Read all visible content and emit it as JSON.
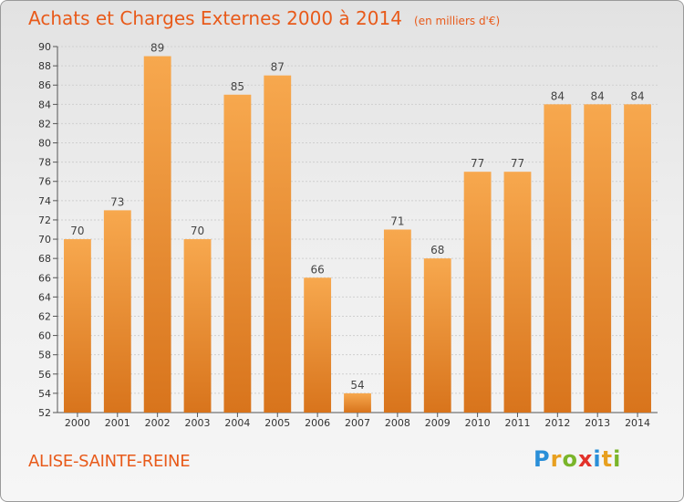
{
  "header": {
    "title": "Achats et Charges Externes 2000 à 2014",
    "unit": "(en milliers d'€)"
  },
  "footer": {
    "town": "ALISE-SAINTE-REINE",
    "logo_letters": [
      "P",
      "r",
      "o",
      "x",
      "i",
      "t",
      "i"
    ],
    "logo_colors": [
      "#2a8fd8",
      "#e8a020",
      "#7ab52a",
      "#e2322a",
      "#2a8fd8",
      "#e8a020",
      "#7ab52a"
    ]
  },
  "colors": {
    "accent": "#e85a1a",
    "bar_light": "#f7a84e",
    "bar_dark": "#d8741c"
  },
  "chart_data": {
    "type": "bar",
    "categories": [
      "2000",
      "2001",
      "2002",
      "2003",
      "2004",
      "2005",
      "2006",
      "2007",
      "2008",
      "2009",
      "2010",
      "2011",
      "2012",
      "2013",
      "2014"
    ],
    "values": [
      70,
      73,
      89,
      70,
      85,
      87,
      66,
      54,
      71,
      68,
      77,
      77,
      84,
      84,
      84
    ],
    "title": "Achats et Charges Externes 2000 à 2014",
    "xlabel": "",
    "ylabel": "",
    "ylim": [
      52,
      90
    ],
    "yticks": [
      52,
      54,
      56,
      58,
      60,
      62,
      64,
      66,
      68,
      70,
      72,
      74,
      76,
      78,
      80,
      82,
      84,
      86,
      88,
      90
    ],
    "grid": true,
    "legend": "none"
  }
}
